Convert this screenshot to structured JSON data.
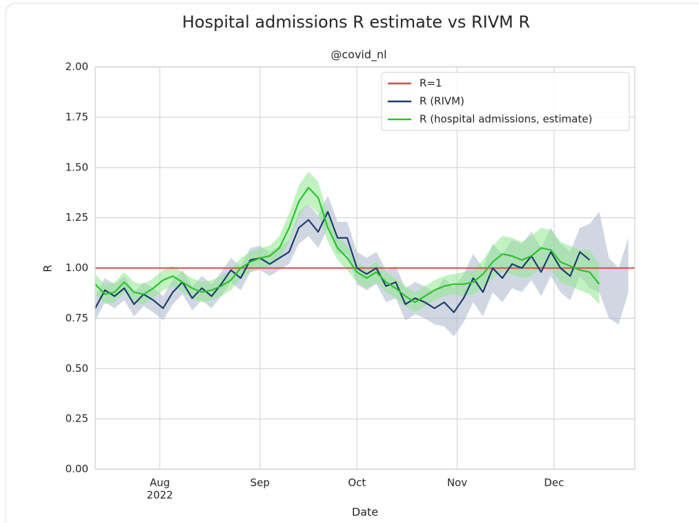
{
  "chart_data": {
    "type": "line",
    "title": "Hospital admissions R estimate vs RIVM R",
    "subtitle": "@covid_nl",
    "xlabel": "Date",
    "ylabel": "R",
    "legend": "upper right",
    "grid": true,
    "xlim": [
      0,
      167
    ],
    "xticks": [
      {
        "value": 20,
        "label": "Aug"
      },
      {
        "value": 51,
        "label": "Sep"
      },
      {
        "value": 81,
        "label": "Oct"
      },
      {
        "value": 112,
        "label": "Nov"
      },
      {
        "value": 142,
        "label": "Dec"
      }
    ],
    "x_year": "2022",
    "ylim": [
      0,
      2
    ],
    "yticks": [
      {
        "value": 0,
        "label": "0.00"
      },
      {
        "value": 0.25,
        "label": "0.25"
      },
      {
        "value": 0.5,
        "label": "0.50"
      },
      {
        "value": 0.75,
        "label": "0.75"
      },
      {
        "value": 1,
        "label": "1.00"
      },
      {
        "value": 1.25,
        "label": "1.25"
      },
      {
        "value": 1.5,
        "label": "1.50"
      },
      {
        "value": 1.75,
        "label": "1.75"
      },
      {
        "value": 2,
        "label": "2.00"
      }
    ],
    "reference_line": {
      "name": "R=1",
      "value": 1,
      "color": "#d9474a"
    },
    "x": [
      0,
      3,
      6,
      9,
      12,
      15,
      18,
      21,
      24,
      27,
      30,
      33,
      36,
      39,
      42,
      45,
      48,
      51,
      54,
      57,
      60,
      63,
      66,
      69,
      72,
      75,
      78,
      81,
      84,
      87,
      90,
      93,
      96,
      99,
      102,
      105,
      108,
      111,
      114,
      117,
      120,
      123,
      126,
      129,
      132,
      135,
      138,
      141,
      144,
      147,
      150,
      153,
      156,
      159,
      162,
      165
    ],
    "series": [
      {
        "name": "R (RIVM)",
        "color": "#1d3a6b",
        "band_color": "#a9b7cc",
        "values": [
          0.8,
          0.89,
          0.86,
          0.9,
          0.82,
          0.87,
          0.84,
          0.8,
          0.88,
          0.93,
          0.85,
          0.9,
          0.86,
          0.92,
          0.99,
          0.95,
          1.04,
          1.05,
          1.02,
          1.05,
          1.08,
          1.2,
          1.24,
          1.18,
          1.28,
          1.15,
          1.15,
          1.0,
          0.97,
          1.0,
          0.91,
          0.93,
          0.82,
          0.85,
          0.83,
          0.8,
          0.83,
          0.78,
          0.85,
          0.95,
          0.88,
          1.0,
          0.95,
          1.02,
          1.0,
          1.06,
          0.98,
          1.08,
          1.0,
          0.96,
          1.08,
          1.04,
          null,
          null,
          null,
          null
        ],
        "lower": [
          0.74,
          0.83,
          0.8,
          0.84,
          0.76,
          0.81,
          0.78,
          0.74,
          0.82,
          0.87,
          0.79,
          0.84,
          0.8,
          0.86,
          0.93,
          0.89,
          0.98,
          0.99,
          0.96,
          0.99,
          1.02,
          1.12,
          1.16,
          1.1,
          1.2,
          1.07,
          1.07,
          0.92,
          0.89,
          0.92,
          0.83,
          0.85,
          0.74,
          0.77,
          0.75,
          0.72,
          0.71,
          0.66,
          0.73,
          0.83,
          0.76,
          0.88,
          0.83,
          0.9,
          0.88,
          0.94,
          0.86,
          0.96,
          0.88,
          0.84,
          0.96,
          0.9,
          0.88,
          0.75,
          0.72,
          0.88
        ],
        "upper": [
          0.86,
          0.95,
          0.92,
          0.96,
          0.88,
          0.93,
          0.9,
          0.86,
          0.94,
          0.99,
          0.91,
          0.96,
          0.92,
          0.98,
          1.05,
          1.01,
          1.1,
          1.11,
          1.08,
          1.11,
          1.14,
          1.28,
          1.32,
          1.26,
          1.36,
          1.23,
          1.23,
          1.08,
          1.05,
          1.08,
          0.99,
          1.01,
          0.9,
          0.93,
          0.91,
          0.88,
          0.95,
          0.9,
          0.97,
          1.07,
          1.0,
          1.12,
          1.07,
          1.14,
          1.12,
          1.18,
          1.1,
          1.2,
          1.12,
          1.08,
          1.2,
          1.22,
          1.28,
          1.05,
          1.0,
          1.15
        ]
      },
      {
        "name": "R (hospital admissions, estimate)",
        "color": "#2cc12c",
        "band_color": "#90e890",
        "values": [
          0.92,
          0.87,
          0.88,
          0.93,
          0.88,
          0.87,
          0.9,
          0.94,
          0.96,
          0.93,
          0.9,
          0.88,
          0.89,
          0.91,
          0.94,
          1.0,
          1.03,
          1.05,
          1.06,
          1.1,
          1.2,
          1.33,
          1.4,
          1.35,
          1.2,
          1.1,
          1.05,
          0.98,
          0.95,
          0.98,
          0.93,
          0.9,
          0.86,
          0.83,
          0.86,
          0.89,
          0.91,
          0.92,
          0.92,
          0.93,
          0.97,
          1.03,
          1.07,
          1.06,
          1.04,
          1.06,
          1.1,
          1.09,
          1.03,
          1.01,
          0.99,
          0.98,
          0.92,
          null,
          null,
          null
        ],
        "lower": [
          0.87,
          0.82,
          0.83,
          0.88,
          0.83,
          0.82,
          0.85,
          0.89,
          0.91,
          0.88,
          0.85,
          0.83,
          0.84,
          0.86,
          0.89,
          0.95,
          0.98,
          1.0,
          1.01,
          1.04,
          1.13,
          1.25,
          1.32,
          1.27,
          1.13,
          1.04,
          0.99,
          0.93,
          0.9,
          0.93,
          0.88,
          0.85,
          0.81,
          0.78,
          0.81,
          0.84,
          0.86,
          0.87,
          0.86,
          0.87,
          0.9,
          0.95,
          0.98,
          0.97,
          0.95,
          0.96,
          1.0,
          0.99,
          0.93,
          0.91,
          0.89,
          0.87,
          0.82,
          null,
          null,
          null
        ],
        "upper": [
          0.97,
          0.92,
          0.93,
          0.98,
          0.93,
          0.92,
          0.95,
          0.99,
          1.01,
          0.98,
          0.95,
          0.93,
          0.94,
          0.96,
          0.99,
          1.05,
          1.08,
          1.1,
          1.11,
          1.16,
          1.27,
          1.41,
          1.48,
          1.43,
          1.27,
          1.16,
          1.11,
          1.03,
          1.0,
          1.03,
          0.98,
          0.95,
          0.91,
          0.88,
          0.91,
          0.94,
          0.96,
          0.97,
          0.98,
          0.99,
          1.04,
          1.11,
          1.16,
          1.15,
          1.13,
          1.16,
          1.2,
          1.19,
          1.13,
          1.11,
          1.09,
          1.09,
          1.02,
          null,
          null,
          null
        ]
      }
    ]
  }
}
